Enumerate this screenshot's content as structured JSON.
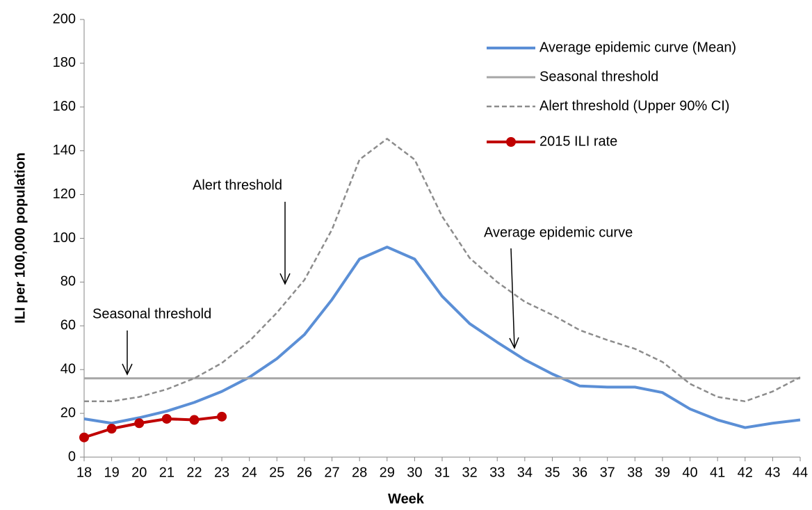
{
  "chart_data": {
    "type": "line",
    "x_label": "Week",
    "y_label": "ILI per 100,000 population",
    "x": [
      18,
      19,
      20,
      21,
      22,
      23,
      24,
      25,
      26,
      27,
      28,
      29,
      30,
      31,
      32,
      33,
      34,
      35,
      36,
      37,
      38,
      39,
      40,
      41,
      42,
      43,
      44
    ],
    "xlim": [
      18,
      44
    ],
    "xticks": [
      18,
      19,
      20,
      21,
      22,
      23,
      24,
      25,
      26,
      27,
      28,
      29,
      30,
      31,
      32,
      33,
      34,
      35,
      36,
      37,
      38,
      39,
      40,
      41,
      42,
      43,
      44
    ],
    "ylim": [
      0,
      200
    ],
    "yticks": [
      0,
      20,
      40,
      60,
      80,
      100,
      120,
      140,
      160,
      180,
      200
    ],
    "series": [
      {
        "name": "Average epidemic curve (Mean)",
        "color": "#5b8fd6",
        "style": "solid",
        "values": [
          17.5,
          15.5,
          18,
          21,
          25,
          30,
          36.5,
          45,
          56,
          72,
          90.5,
          96,
          90.5,
          73.5,
          61,
          52.5,
          44.5,
          38,
          32.5,
          32,
          32,
          29.5,
          22,
          17,
          13.5,
          15.5,
          17
        ]
      },
      {
        "name": "Seasonal threshold",
        "color": "#a6a6a6",
        "style": "solid",
        "values": [
          36,
          36,
          36,
          36,
          36,
          36,
          36,
          36,
          36,
          36,
          36,
          36,
          36,
          36,
          36,
          36,
          36,
          36,
          36,
          36,
          36,
          36,
          36,
          36,
          36,
          36,
          36
        ]
      },
      {
        "name": "Alert threshold (Upper 90% CI)",
        "color": "#8c8c8c",
        "style": "dashed",
        "values": [
          25.5,
          25.5,
          27.5,
          31,
          36,
          43,
          53,
          66,
          81,
          104,
          136,
          145.5,
          136,
          110,
          91,
          80,
          71,
          65,
          58,
          53.5,
          49.5,
          43.5,
          33.5,
          27.5,
          25.5,
          30,
          36.5
        ]
      },
      {
        "name": "2015 ILI rate",
        "color": "#c00000",
        "style": "markers",
        "values": [
          9,
          13,
          15.5,
          17.5,
          17,
          18.5,
          null,
          null,
          null,
          null,
          null,
          null,
          null,
          null,
          null,
          null,
          null,
          null,
          null,
          null,
          null,
          null,
          null,
          null,
          null,
          null,
          null
        ]
      }
    ],
    "annotations": [
      "Alert threshold",
      "Seasonal threshold",
      "Average epidemic curve"
    ],
    "legend": "top-right"
  }
}
